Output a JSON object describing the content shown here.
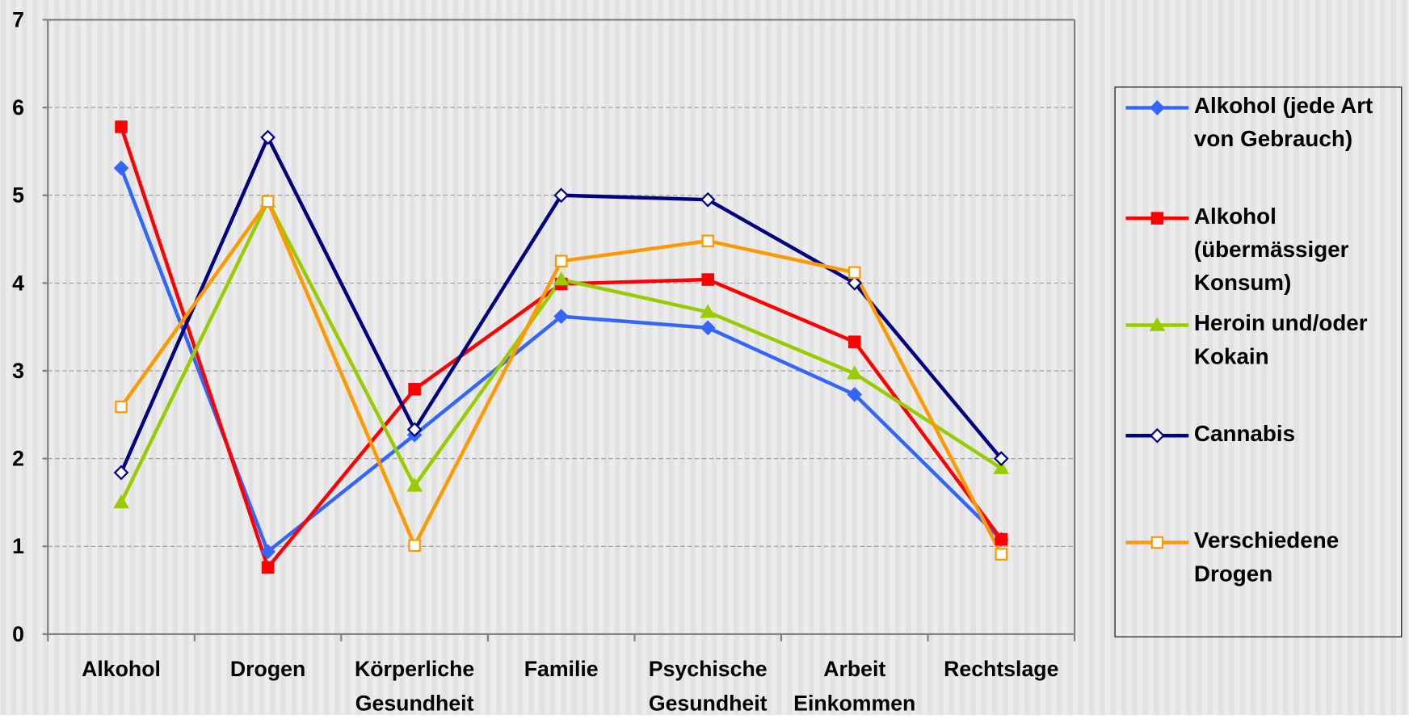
{
  "chart_data": {
    "type": "line",
    "categories": [
      "Alkohol",
      "Drogen",
      "Körperliche Gesundheit",
      "Familie",
      "Psychische Gesundheit",
      "Arbeit Einkommen",
      "Rechtslage"
    ],
    "series": [
      {
        "name": "Alkohol (jede Art von Gebrauch)",
        "color": "#3366ff",
        "marker": "diamond",
        "values": [
          5.31,
          0.94,
          2.27,
          3.62,
          3.49,
          2.73,
          1.08
        ]
      },
      {
        "name": "Alkohol (übermässiger Konsum)",
        "color": "#ff0000",
        "marker": "square",
        "values": [
          5.78,
          0.76,
          2.79,
          3.99,
          4.04,
          3.33,
          1.08
        ]
      },
      {
        "name": "Heroin und/oder Kokain",
        "color": "#99cc00",
        "marker": "triangle",
        "values": [
          1.5,
          4.93,
          1.69,
          4.04,
          3.67,
          2.97,
          1.89
        ]
      },
      {
        "name": "Cannabis",
        "color": "#000080",
        "marker": "open-diamond",
        "values": [
          1.84,
          5.66,
          2.33,
          5.0,
          4.95,
          4.0,
          2.0
        ]
      },
      {
        "name": "Verschiedene Drogen",
        "color": "#ff9900",
        "marker": "open-square",
        "values": [
          2.59,
          4.93,
          1.01,
          4.25,
          4.48,
          4.12,
          0.91
        ]
      }
    ],
    "ylim": [
      0,
      7
    ],
    "yticks": [
      0,
      1,
      2,
      3,
      4,
      5,
      6,
      7
    ],
    "grid": true,
    "legend": "right"
  }
}
